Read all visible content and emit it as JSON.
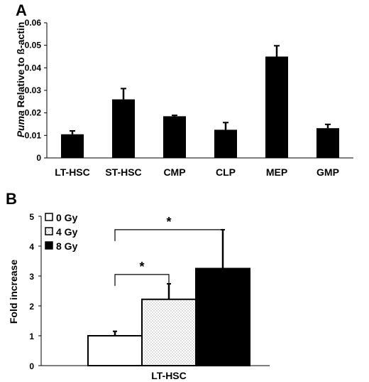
{
  "panels": {
    "a": {
      "letter": "A"
    },
    "b": {
      "letter": "B"
    }
  },
  "chart_data": [
    {
      "type": "bar",
      "categories": [
        "LT-HSC",
        "ST-HSC",
        "CMP",
        "CLP",
        "MEP",
        "GMP"
      ],
      "values": [
        0.0105,
        0.026,
        0.0185,
        0.0125,
        0.045,
        0.0132
      ],
      "errors": [
        0.0015,
        0.0048,
        0.0004,
        0.0032,
        0.0048,
        0.0017
      ],
      "ylabel_italic": "Puma",
      "ylabel_rest": " Relative to ß-actin",
      "ylim": [
        0,
        0.06
      ],
      "yticks": [
        "0",
        "0.01",
        "0.02",
        "0.03",
        "0.04",
        "0.05",
        "0.06"
      ],
      "ytick_values": [
        0,
        0.01,
        0.02,
        0.03,
        0.04,
        0.05,
        0.06
      ],
      "bar_color": "#000000",
      "grid": false
    },
    {
      "type": "bar",
      "categories": [
        "LT-HSC"
      ],
      "series": [
        {
          "name": "0 Gy",
          "values": [
            1.0
          ],
          "errors": [
            0.15
          ],
          "fill": "#ffffff",
          "pattern": "none"
        },
        {
          "name": "4 Gy",
          "values": [
            2.22
          ],
          "errors": [
            0.52
          ],
          "fill": "#ffffff",
          "pattern": "dots"
        },
        {
          "name": "8 Gy",
          "values": [
            3.25
          ],
          "errors": [
            1.3
          ],
          "fill": "#000000",
          "pattern": "none"
        }
      ],
      "ylabel": "Fold  increase",
      "ylim": [
        0,
        5
      ],
      "yticks": [
        "0",
        "1",
        "2",
        "3",
        "4",
        "5"
      ],
      "ytick_values": [
        0,
        1,
        2,
        3,
        4,
        5
      ],
      "legend_position": "top-left",
      "annotations": [
        {
          "text": "*",
          "from": "0 Gy",
          "to": "8 Gy",
          "level": 4.55
        },
        {
          "text": "*",
          "from": "0 Gy",
          "to": "4 Gy",
          "level": 3.05
        }
      ],
      "grid": false
    }
  ]
}
